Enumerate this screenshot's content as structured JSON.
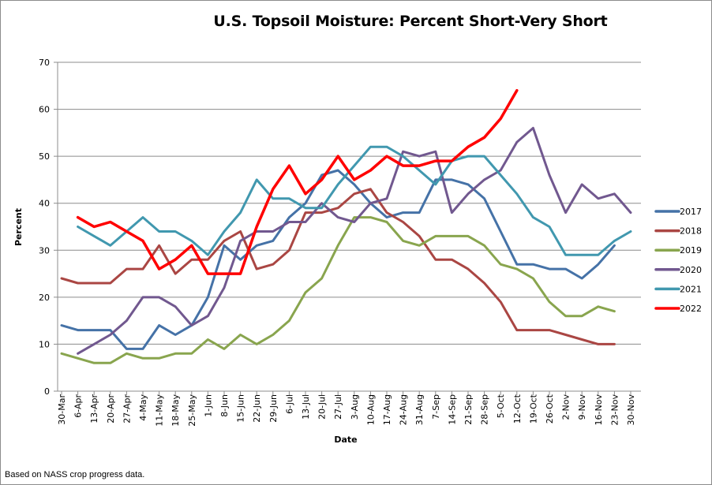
{
  "chart_data": {
    "type": "line",
    "title": "U.S. Topsoil Moisture: Percent Short-Very Short",
    "xlabel": "Date",
    "ylabel": "Percent",
    "ylim": [
      0,
      70
    ],
    "yticks": [
      0,
      10,
      20,
      30,
      40,
      50,
      60,
      70
    ],
    "grid": true,
    "legend_position": "right",
    "categories": [
      "30-Mar",
      "6-Apr",
      "13-Apr",
      "20-Apr",
      "27-Apr",
      "4-May",
      "11-May",
      "18-May",
      "25-May",
      "1-Jun",
      "8-Jun",
      "15-Jun",
      "22-Jun",
      "29-Jun",
      "6-Jul",
      "13-Jul",
      "20-Jul",
      "27-Jul",
      "3-Aug",
      "10-Aug",
      "17-Aug",
      "24-Aug",
      "31-Aug",
      "7-Sep",
      "14-Sep",
      "21-Sep",
      "28-Sep",
      "5-Oct",
      "12-Oct",
      "19-Oct",
      "26-Oct",
      "2-Nov",
      "9-Nov",
      "16-Nov",
      "23-Nov",
      "30-Nov"
    ],
    "series": [
      {
        "name": "2017",
        "color": "#4572a7",
        "values": [
          14,
          13,
          13,
          13,
          9,
          9,
          14,
          12,
          14,
          20,
          31,
          28,
          31,
          32,
          37,
          40,
          46,
          47,
          44,
          40,
          37,
          38,
          38,
          45,
          45,
          44,
          41,
          34,
          27,
          27,
          26,
          26,
          24,
          27,
          31,
          null
        ]
      },
      {
        "name": "2018",
        "color": "#aa4643",
        "values": [
          24,
          23,
          23,
          23,
          26,
          26,
          31,
          25,
          28,
          28,
          32,
          34,
          26,
          27,
          30,
          38,
          38,
          39,
          42,
          43,
          38,
          36,
          33,
          28,
          28,
          26,
          23,
          19,
          13,
          13,
          13,
          12,
          11,
          10,
          10,
          null
        ]
      },
      {
        "name": "2019",
        "color": "#89a54e",
        "values": [
          8,
          7,
          6,
          6,
          8,
          7,
          7,
          8,
          8,
          11,
          9,
          12,
          10,
          12,
          15,
          21,
          24,
          31,
          37,
          37,
          36,
          32,
          31,
          33,
          33,
          33,
          31,
          27,
          26,
          24,
          19,
          16,
          16,
          18,
          17,
          null
        ]
      },
      {
        "name": "2020",
        "color": "#71588f",
        "values": [
          null,
          8,
          10,
          12,
          15,
          20,
          20,
          18,
          14,
          16,
          22,
          32,
          34,
          34,
          36,
          36,
          40,
          37,
          36,
          40,
          41,
          51,
          50,
          51,
          38,
          42,
          45,
          47,
          53,
          56,
          46,
          38,
          44,
          41,
          42,
          38
        ]
      },
      {
        "name": "2021",
        "color": "#4198af",
        "values": [
          null,
          35,
          33,
          31,
          34,
          37,
          34,
          34,
          32,
          29,
          34,
          38,
          45,
          41,
          41,
          39,
          39,
          44,
          48,
          52,
          52,
          50,
          47,
          44,
          49,
          50,
          50,
          46,
          42,
          37,
          35,
          29,
          29,
          29,
          32,
          34
        ]
      },
      {
        "name": "2022",
        "color": "#ff0000",
        "values": [
          null,
          37,
          35,
          36,
          34,
          32,
          26,
          28,
          31,
          25,
          25,
          25,
          35,
          43,
          48,
          42,
          45,
          50,
          45,
          47,
          50,
          48,
          48,
          49,
          49,
          52,
          54,
          58,
          64,
          null,
          null,
          null,
          null,
          null,
          null,
          null
        ]
      }
    ]
  },
  "footer": {
    "source_note": "Based on NASS crop progress data."
  }
}
